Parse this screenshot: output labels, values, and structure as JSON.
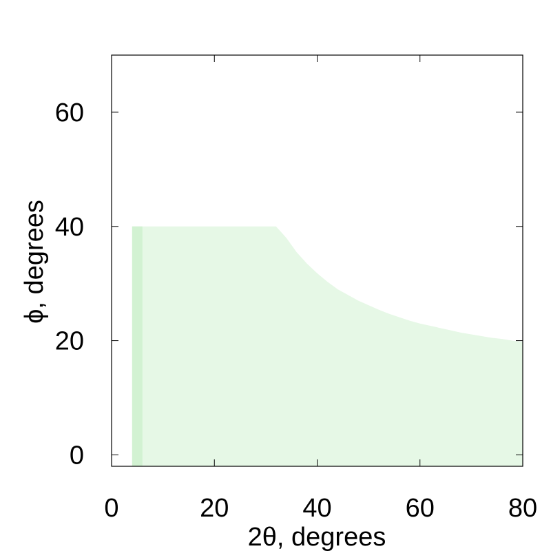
{
  "chart_data": {
    "type": "heatmap",
    "title": "",
    "xlabel": "2θ, degrees",
    "ylabel": "ϕ, degrees",
    "xlim": [
      0,
      80
    ],
    "ylim": [
      -2,
      70
    ],
    "xticks": [
      0,
      20,
      40,
      60,
      80
    ],
    "yticks": [
      0,
      20,
      40,
      60
    ],
    "xtick_labels": [
      "0",
      "20",
      "40",
      "60",
      "80"
    ],
    "ytick_labels": [
      "0",
      "20",
      "40",
      "60"
    ],
    "grid": false,
    "colors": {
      "fill": "#e6f8e6",
      "fill_dark": "#d2f2d2",
      "frame": "#000000"
    },
    "coverage_boundary": [
      {
        "x": 4,
        "y_min": -2,
        "y_max": 40
      },
      {
        "x": 32,
        "y_min": -2,
        "y_max": 40
      },
      {
        "x": 34,
        "y_min": -2,
        "y_max": 38
      },
      {
        "x": 36,
        "y_min": -2,
        "y_max": 35.5
      },
      {
        "x": 38,
        "y_min": -2,
        "y_max": 33.5
      },
      {
        "x": 40,
        "y_min": -2,
        "y_max": 31.8
      },
      {
        "x": 42,
        "y_min": -2,
        "y_max": 30.3
      },
      {
        "x": 44,
        "y_min": -2,
        "y_max": 29
      },
      {
        "x": 46,
        "y_min": -2,
        "y_max": 28
      },
      {
        "x": 48,
        "y_min": -2,
        "y_max": 27
      },
      {
        "x": 50,
        "y_min": -2,
        "y_max": 26.2
      },
      {
        "x": 52,
        "y_min": -2,
        "y_max": 25.4
      },
      {
        "x": 54,
        "y_min": -2,
        "y_max": 24.7
      },
      {
        "x": 56,
        "y_min": -2,
        "y_max": 24.1
      },
      {
        "x": 58,
        "y_min": -2,
        "y_max": 23.5
      },
      {
        "x": 60,
        "y_min": -2,
        "y_max": 23
      },
      {
        "x": 62,
        "y_min": -2,
        "y_max": 22.6
      },
      {
        "x": 64,
        "y_min": -2,
        "y_max": 22.2
      },
      {
        "x": 66,
        "y_min": -2,
        "y_max": 21.8
      },
      {
        "x": 68,
        "y_min": -2,
        "y_max": 21.4
      },
      {
        "x": 70,
        "y_min": -2,
        "y_max": 21.1
      },
      {
        "x": 72,
        "y_min": -2,
        "y_max": 20.8
      },
      {
        "x": 74,
        "y_min": -2,
        "y_max": 20.5
      },
      {
        "x": 76,
        "y_min": -2,
        "y_max": 20.3
      },
      {
        "x": 78,
        "y_min": -2,
        "y_max": 20
      },
      {
        "x": 80,
        "y_min": -2,
        "y_max": 19.8
      }
    ]
  }
}
